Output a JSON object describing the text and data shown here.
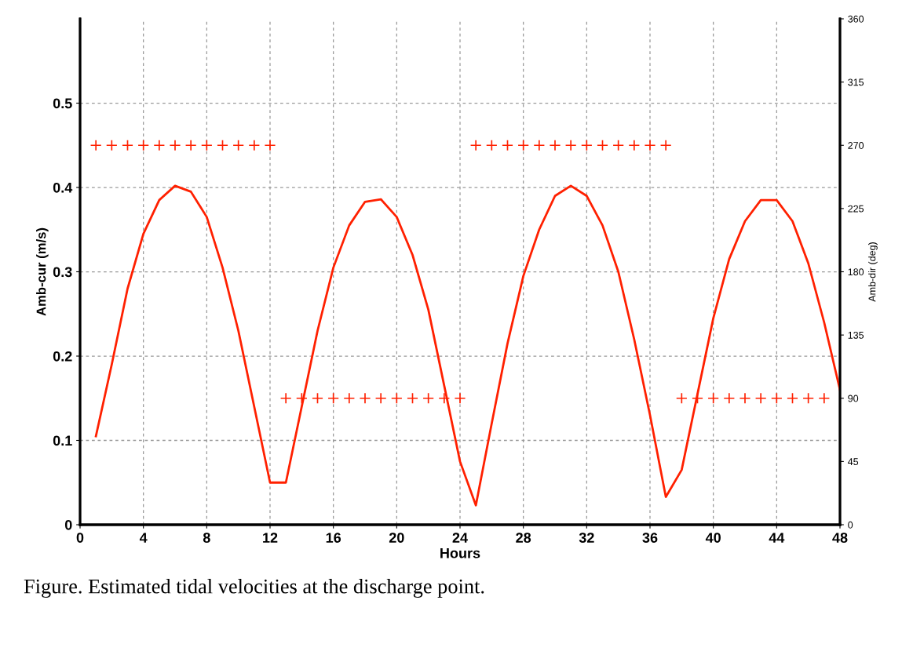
{
  "chart_data": {
    "type": "line",
    "xlabel": "Hours",
    "ylabel": "Amb-cur (m/s)",
    "y2label": "Amb-dir (deg)",
    "x": [
      1,
      2,
      3,
      4,
      5,
      6,
      7,
      8,
      9,
      10,
      11,
      12,
      13,
      14,
      15,
      16,
      17,
      18,
      19,
      20,
      21,
      22,
      23,
      24,
      25,
      26,
      27,
      28,
      29,
      30,
      31,
      32,
      33,
      34,
      35,
      36,
      37,
      38,
      39,
      40,
      41,
      42,
      43,
      44,
      45,
      46,
      47,
      48
    ],
    "series": [
      {
        "color": "#ff2000",
        "marker": "none",
        "values": [
          0.105,
          0.19,
          0.28,
          0.345,
          0.385,
          0.402,
          0.395,
          0.365,
          0.305,
          0.23,
          0.14,
          0.05,
          0.05,
          0.14,
          0.23,
          0.305,
          0.355,
          0.383,
          0.386,
          0.365,
          0.32,
          0.255,
          0.165,
          0.075,
          0.023,
          0.12,
          0.215,
          0.295,
          0.35,
          0.39,
          0.402,
          0.39,
          0.355,
          0.3,
          0.22,
          0.13,
          0.033,
          0.065,
          0.155,
          0.245,
          0.315,
          0.36,
          0.385,
          0.385,
          0.36,
          0.31,
          0.24,
          0.16
        ]
      },
      {
        "type": "scatter",
        "axis": "y2",
        "color": "#ff2000",
        "marker": "cross",
        "values": [
          270,
          270,
          270,
          270,
          270,
          270,
          270,
          270,
          270,
          270,
          270,
          270,
          90,
          90,
          90,
          90,
          90,
          90,
          90,
          90,
          90,
          90,
          90,
          90,
          270,
          270,
          270,
          270,
          270,
          270,
          270,
          270,
          270,
          270,
          270,
          270,
          270,
          90,
          90,
          90,
          90,
          90,
          90,
          90,
          90,
          90,
          90,
          null
        ]
      }
    ],
    "xlim": [
      0,
      48
    ],
    "xticks": [
      0,
      4,
      8,
      12,
      16,
      20,
      24,
      28,
      32,
      36,
      40,
      44,
      48
    ],
    "ylim": [
      0,
      0.6
    ],
    "yticks": [
      0,
      0.1,
      0.2,
      0.3,
      0.4,
      0.5
    ],
    "y2lim": [
      0,
      360
    ],
    "y2ticks": [
      0,
      45,
      90,
      135,
      180,
      225,
      270,
      315,
      360
    ],
    "grid": true,
    "legend": false,
    "annotations": [
      "Figure. Estimated tidal velocities at the discharge point."
    ]
  }
}
